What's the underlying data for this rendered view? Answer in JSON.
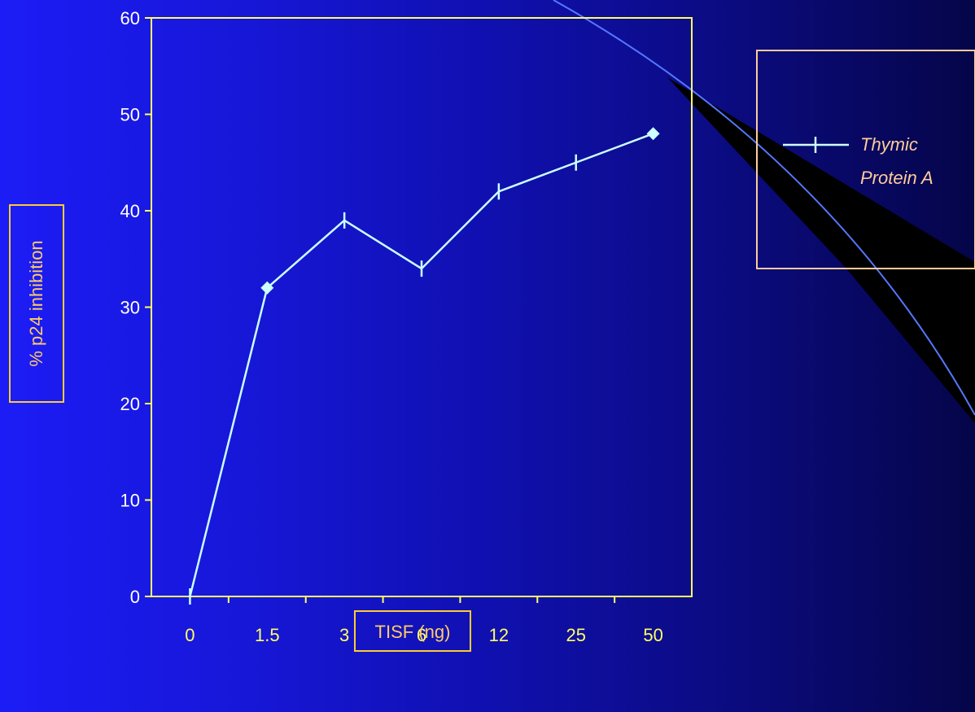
{
  "colors": {
    "axis": "#ffff66",
    "tick_label": "#ffff66",
    "y_tick_label": "#ffffff",
    "line": "#ccffff",
    "label_box": "#ffcc33",
    "axis_label_text": "#ffcc66",
    "legend_text": "#ffcc99",
    "legend_border": "#ffcc99",
    "arc": "#5577ff"
  },
  "chart_data": {
    "type": "line",
    "title": "",
    "xlabel": "TISF (ng)",
    "ylabel": "% p24 inhibition",
    "categories": [
      "0",
      "1.5",
      "3",
      "6",
      "12",
      "25",
      "50"
    ],
    "y_ticks": [
      "0",
      "10",
      "20",
      "30",
      "40",
      "50",
      "60"
    ],
    "ylim": [
      0,
      60
    ],
    "grid": false,
    "legend_position": "right",
    "series": [
      {
        "name": "Thymic Protein A",
        "values": [
          0,
          32,
          39,
          34,
          42,
          45,
          48
        ],
        "marker": "dash",
        "highlighted_points": [
          1,
          6
        ]
      }
    ]
  }
}
